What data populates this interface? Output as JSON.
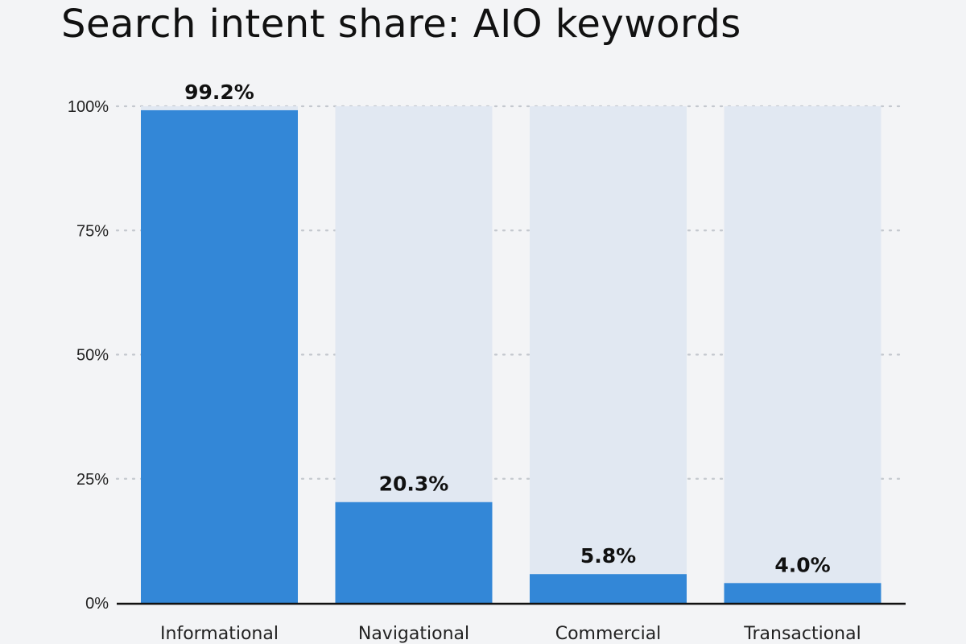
{
  "chart_data": {
    "type": "bar",
    "title": "Search intent share: AIO keywords",
    "categories": [
      "Informational",
      "Navigational",
      "Commercial",
      "Transactional"
    ],
    "values": [
      99.2,
      20.3,
      5.8,
      4.0
    ],
    "value_labels": [
      "99.2%",
      "20.3%",
      "5.8%",
      "4.0%"
    ],
    "y_ticks": [
      0,
      25,
      50,
      75,
      100
    ],
    "y_tick_labels": [
      "0%",
      "25%",
      "50%",
      "75%",
      "100%"
    ],
    "ylim": [
      0,
      100
    ],
    "xlabel": "",
    "ylabel": "",
    "grid": true,
    "legend": false,
    "colors": {
      "bar": "#3387d7",
      "background_bar": "#e1e8f2",
      "grid": "#c4c8ce",
      "axis": "#111111",
      "page": "#f3f4f6"
    }
  }
}
